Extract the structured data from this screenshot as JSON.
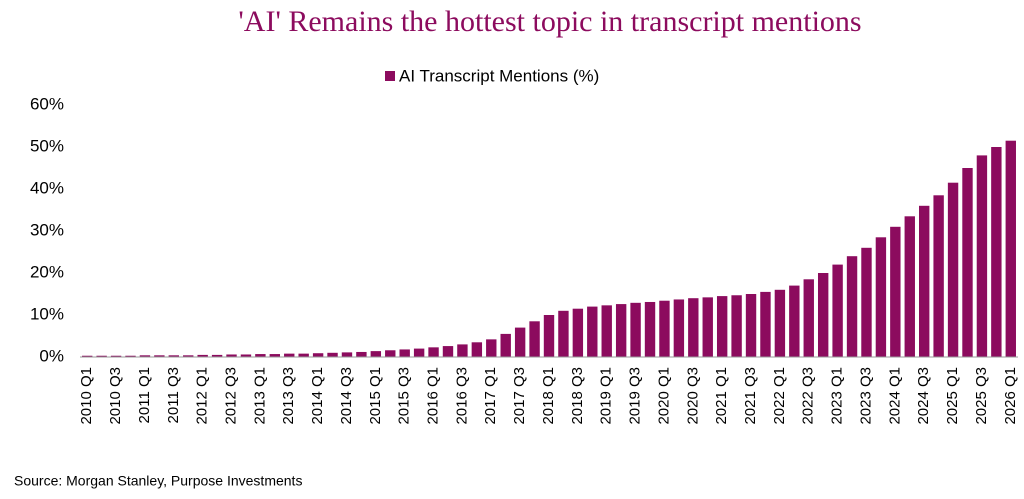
{
  "chart_data": {
    "type": "bar",
    "title": "'AI' Remains the hottest topic in transcript mentions",
    "source": "Source: Morgan Stanley, Purpose Investments",
    "categories": [
      "2010 Q1",
      null,
      "2010 Q3",
      null,
      "2011 Q1",
      null,
      "2011 Q3",
      null,
      "2012 Q1",
      null,
      "2012 Q3",
      null,
      "2013 Q1",
      null,
      "2013 Q3",
      null,
      "2014 Q1",
      null,
      "2014 Q3",
      null,
      "2015 Q1",
      null,
      "2015 Q3",
      null,
      "2016 Q1",
      null,
      "2016 Q3",
      null,
      "2017 Q1",
      null,
      "2017 Q3",
      null,
      "2018 Q1",
      null,
      "2018 Q3",
      null,
      "2019 Q1",
      null,
      "2019 Q3",
      null,
      "2020 Q1",
      null,
      "2020 Q3",
      null,
      "2021 Q1",
      null,
      "2021 Q3",
      null,
      "2022 Q1",
      null,
      "2022 Q3",
      null,
      "2023 Q1",
      null,
      "2023 Q3",
      null,
      "2024 Q1",
      null,
      "2024 Q3",
      null,
      "2025 Q1",
      null,
      "2025 Q3",
      null,
      "2026 Q1"
    ],
    "series": [
      {
        "name": "AI Transcript Mentions (%)",
        "color": "#8c0b5e",
        "values": [
          0.3,
          0.3,
          0.3,
          0.3,
          0.4,
          0.4,
          0.4,
          0.4,
          0.5,
          0.5,
          0.6,
          0.6,
          0.7,
          0.7,
          0.8,
          0.8,
          0.9,
          1.0,
          1.1,
          1.2,
          1.4,
          1.6,
          1.8,
          2.0,
          2.3,
          2.6,
          3.0,
          3.5,
          4.2,
          5.5,
          7.0,
          8.5,
          10.0,
          11.0,
          11.5,
          12.0,
          12.3,
          12.6,
          12.9,
          13.1,
          13.4,
          13.7,
          14.0,
          14.2,
          14.5,
          14.7,
          15.0,
          15.5,
          16.0,
          17.0,
          18.5,
          20.0,
          22.0,
          24.0,
          26.0,
          28.5,
          31.0,
          33.5,
          36.0,
          38.5,
          41.5,
          45.0,
          48.0,
          50.0,
          51.5
        ]
      }
    ],
    "ylim": [
      0,
      60
    ],
    "yticks": [
      {
        "value": 0,
        "label": "0%"
      },
      {
        "value": 10,
        "label": "10%"
      },
      {
        "value": 20,
        "label": "20%"
      },
      {
        "value": 30,
        "label": "30%"
      },
      {
        "value": 40,
        "label": "40%"
      },
      {
        "value": 50,
        "label": "50%"
      },
      {
        "value": 60,
        "label": "60%"
      }
    ],
    "grid": false
  }
}
